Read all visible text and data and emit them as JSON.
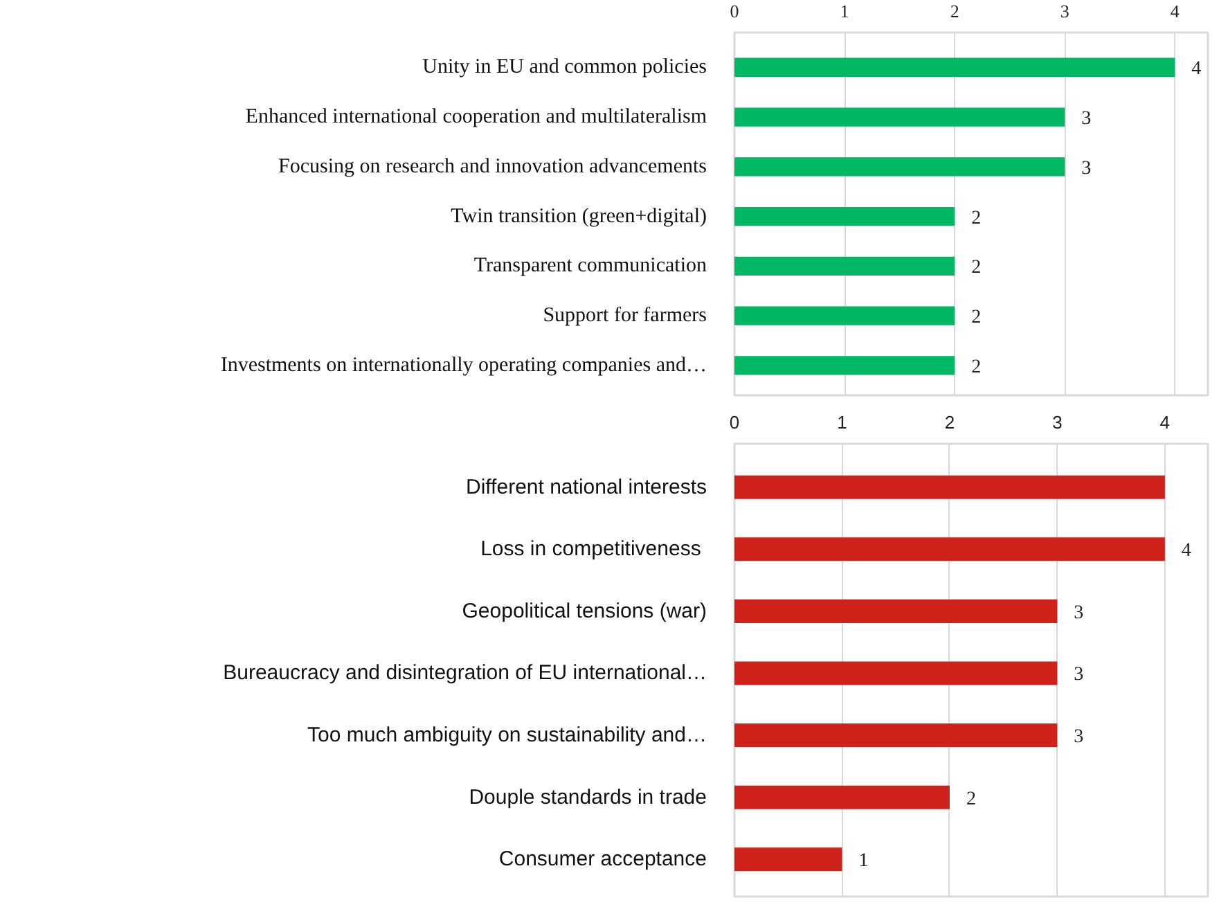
{
  "chart_data": [
    {
      "type": "bar",
      "orientation": "horizontal",
      "categories": [
        "Unity in EU and common policies",
        "Enhanced international cooperation and multilateralism",
        "Focusing on research and innovation advancements",
        "Twin transition (green+digital)",
        "Transparent communication",
        "Support for farmers",
        "Investments on internationally operating companies and…"
      ],
      "values": [
        4,
        3,
        3,
        2,
        2,
        2,
        2
      ],
      "color": "#00b764",
      "xlim": [
        0,
        4.3
      ],
      "xticks": [
        0,
        1,
        2,
        3,
        4
      ],
      "grid": "x",
      "data_labels": true
    },
    {
      "type": "bar",
      "orientation": "horizontal",
      "categories": [
        "Different national interests",
        "Loss in competitiveness ",
        "Geopolitical tensions (war)",
        "Bureaucracy and disintegration of EU international…",
        "Too much ambiguity on sustainability and…",
        "Douple standards in trade",
        "Consumer acceptance"
      ],
      "values": [
        4,
        4,
        3,
        3,
        3,
        2,
        1
      ],
      "color": "#d0221a",
      "xlim": [
        0,
        4.4
      ],
      "xticks": [
        0,
        1,
        2,
        3,
        4
      ],
      "grid": "x",
      "value_labels": [
        null,
        "4",
        "3",
        "3",
        "3",
        "2",
        "1"
      ]
    }
  ]
}
